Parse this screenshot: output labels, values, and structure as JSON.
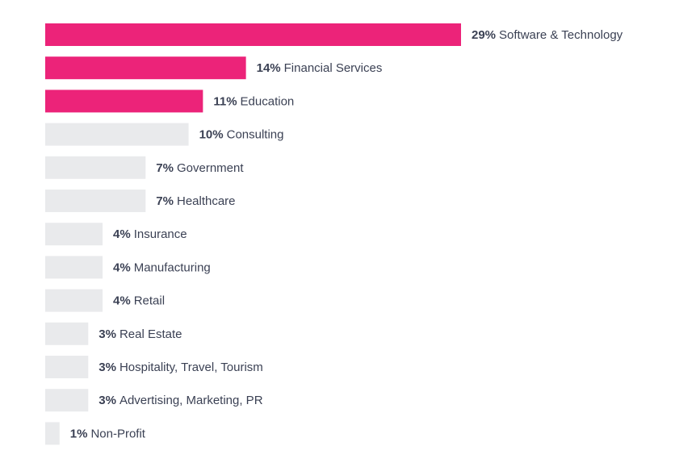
{
  "chart_data": {
    "type": "bar",
    "orientation": "horizontal",
    "categories": [
      "Software & Technology",
      "Financial Services",
      "Education",
      "Consulting",
      "Government",
      "Healthcare",
      "Insurance",
      "Manufacturing",
      "Retail",
      "Real Estate",
      "Hospitality, Travel, Tourism",
      "Advertising, Marketing, PR",
      "Non-Profit"
    ],
    "values": [
      29,
      14,
      11,
      10,
      7,
      7,
      4,
      4,
      4,
      3,
      3,
      3,
      1
    ],
    "value_labels": [
      "29%",
      "14%",
      "11%",
      "10%",
      "7%",
      "7%",
      "4%",
      "4%",
      "4%",
      "3%",
      "3%",
      "3%",
      "1%"
    ],
    "colors": [
      "#ec2379",
      "#ec2379",
      "#ec2379",
      "#e9eaec",
      "#e9eaec",
      "#e9eaec",
      "#e9eaec",
      "#e9eaec",
      "#e9eaec",
      "#e9eaec",
      "#e9eaec",
      "#e9eaec",
      "#e9eaec"
    ],
    "xlim": [
      0,
      29
    ]
  }
}
